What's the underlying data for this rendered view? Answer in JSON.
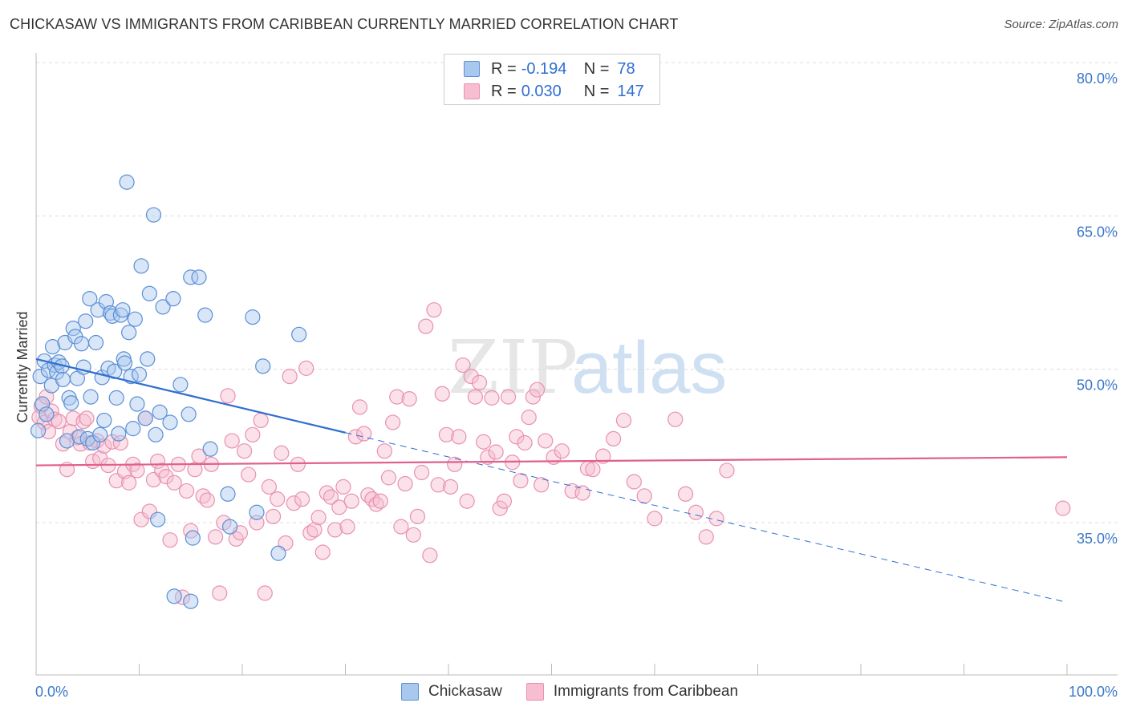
{
  "header": {
    "title": "CHICKASAW VS IMMIGRANTS FROM CARIBBEAN CURRENTLY MARRIED CORRELATION CHART",
    "source": "Source: ZipAtlas.com"
  },
  "watermark": {
    "zip": "ZIP",
    "atlas": "atlas"
  },
  "legend_top": {
    "rows": [
      {
        "r_label": "R =",
        "r_value": "-0.194",
        "n_label": "N =",
        "n_value": "78",
        "color": "#a9c8ee",
        "border": "#5b8fd6"
      },
      {
        "r_label": "R =",
        "r_value": "0.030",
        "n_label": "N =",
        "n_value": "147",
        "color": "#f7bdd0",
        "border": "#e891b0"
      }
    ]
  },
  "legend_bottom": {
    "items": [
      {
        "label": "Chickasaw",
        "color": "#a9c8ee",
        "border": "#5b8fd6"
      },
      {
        "label": "Immigrants from Caribbean",
        "color": "#f7bdd0",
        "border": "#e891b0"
      }
    ]
  },
  "chart_data": {
    "type": "scatter",
    "title": "CHICKASAW VS IMMIGRANTS FROM CARIBBEAN CURRENTLY MARRIED CORRELATION CHART",
    "ylabel": "Currently Married",
    "xlabel": "",
    "xlim": [
      0,
      100
    ],
    "ylim": [
      21,
      82
    ],
    "x_tick_labels": {
      "left": "0.0%",
      "right": "100.0%"
    },
    "y_ticks": [
      {
        "value": 80,
        "label": "80.0%"
      },
      {
        "value": 65,
        "label": "65.0%"
      },
      {
        "value": 50,
        "label": "50.0%"
      },
      {
        "value": 35,
        "label": "35.0%"
      }
    ],
    "grid": "horizontal dashed",
    "legend_placement": "top-center and bottom",
    "series": [
      {
        "name": "Chickasaw",
        "color": "#a9c8ee",
        "edge": "#5b8fd6",
        "trend": {
          "x0": 0,
          "y0": 51.0,
          "x1": 30,
          "y1": 43.8,
          "dashed_to_x": 100,
          "dashed_to_y": 27.2,
          "color": "#2f6fd0"
        },
        "points": [
          [
            0.2,
            44.0
          ],
          [
            0.4,
            49.3
          ],
          [
            0.6,
            46.6
          ],
          [
            0.8,
            50.8
          ],
          [
            1.0,
            45.6
          ],
          [
            1.2,
            49.9
          ],
          [
            1.5,
            48.4
          ],
          [
            1.6,
            52.2
          ],
          [
            1.8,
            50.4
          ],
          [
            2.0,
            49.7
          ],
          [
            2.2,
            50.7
          ],
          [
            2.5,
            50.3
          ],
          [
            2.6,
            49.0
          ],
          [
            2.8,
            52.6
          ],
          [
            3.0,
            43.0
          ],
          [
            3.2,
            47.2
          ],
          [
            3.4,
            46.7
          ],
          [
            3.6,
            54.0
          ],
          [
            3.8,
            53.2
          ],
          [
            4.0,
            49.1
          ],
          [
            4.2,
            43.4
          ],
          [
            4.4,
            52.5
          ],
          [
            4.6,
            50.2
          ],
          [
            4.8,
            54.7
          ],
          [
            5.0,
            43.2
          ],
          [
            5.2,
            56.9
          ],
          [
            5.3,
            47.3
          ],
          [
            5.5,
            42.8
          ],
          [
            5.8,
            52.6
          ],
          [
            6.0,
            55.8
          ],
          [
            6.2,
            43.6
          ],
          [
            6.4,
            49.2
          ],
          [
            6.6,
            45.0
          ],
          [
            6.8,
            56.6
          ],
          [
            7.0,
            50.1
          ],
          [
            7.2,
            55.5
          ],
          [
            7.4,
            55.2
          ],
          [
            7.6,
            49.8
          ],
          [
            7.8,
            47.2
          ],
          [
            8.0,
            43.7
          ],
          [
            8.2,
            55.3
          ],
          [
            8.4,
            55.8
          ],
          [
            8.5,
            51.0
          ],
          [
            8.6,
            50.6
          ],
          [
            8.8,
            68.3
          ],
          [
            9.0,
            53.6
          ],
          [
            9.2,
            49.3
          ],
          [
            9.4,
            44.2
          ],
          [
            9.6,
            54.9
          ],
          [
            9.8,
            46.6
          ],
          [
            10.0,
            49.5
          ],
          [
            10.2,
            60.1
          ],
          [
            10.6,
            45.2
          ],
          [
            10.8,
            51.0
          ],
          [
            11.0,
            57.4
          ],
          [
            11.4,
            65.1
          ],
          [
            11.6,
            43.6
          ],
          [
            11.8,
            35.3
          ],
          [
            12.0,
            45.8
          ],
          [
            12.3,
            56.1
          ],
          [
            13.0,
            44.8
          ],
          [
            13.3,
            56.9
          ],
          [
            14.0,
            48.5
          ],
          [
            15.0,
            59.0
          ],
          [
            15.2,
            33.5
          ],
          [
            15.8,
            59.0
          ],
          [
            16.4,
            55.3
          ],
          [
            16.9,
            42.2
          ],
          [
            18.8,
            34.6
          ],
          [
            18.6,
            37.8
          ],
          [
            21.0,
            55.1
          ],
          [
            21.4,
            36.0
          ],
          [
            22.0,
            50.3
          ],
          [
            23.5,
            32.0
          ],
          [
            25.5,
            53.4
          ],
          [
            13.4,
            27.8
          ],
          [
            15.0,
            27.3
          ],
          [
            14.8,
            45.6
          ]
        ]
      },
      {
        "name": "Immigrants from Caribbean",
        "color": "#f7bdd0",
        "edge": "#e891b0",
        "trend": {
          "x0": 0,
          "y0": 40.6,
          "x1": 100,
          "y1": 41.4,
          "color": "#e0608e"
        },
        "points": [
          [
            0.3,
            45.3
          ],
          [
            0.5,
            46.4
          ],
          [
            0.8,
            44.8
          ],
          [
            1.0,
            47.3
          ],
          [
            1.2,
            43.9
          ],
          [
            1.5,
            45.9
          ],
          [
            1.8,
            45.1
          ],
          [
            2.2,
            44.9
          ],
          [
            2.6,
            42.7
          ],
          [
            3.0,
            40.2
          ],
          [
            3.3,
            43.9
          ],
          [
            3.6,
            45.2
          ],
          [
            4.0,
            43.3
          ],
          [
            4.3,
            42.7
          ],
          [
            4.6,
            44.9
          ],
          [
            4.9,
            45.2
          ],
          [
            5.2,
            42.8
          ],
          [
            5.5,
            41.0
          ],
          [
            5.9,
            43.0
          ],
          [
            6.2,
            41.3
          ],
          [
            6.6,
            42.5
          ],
          [
            7.0,
            40.6
          ],
          [
            7.4,
            42.9
          ],
          [
            7.8,
            39.1
          ],
          [
            8.2,
            42.8
          ],
          [
            8.6,
            40.0
          ],
          [
            9.0,
            38.9
          ],
          [
            9.4,
            40.7
          ],
          [
            9.8,
            40.1
          ],
          [
            10.2,
            35.3
          ],
          [
            10.6,
            45.2
          ],
          [
            11.0,
            36.1
          ],
          [
            11.4,
            39.2
          ],
          [
            11.8,
            41.0
          ],
          [
            12.2,
            40.1
          ],
          [
            12.6,
            39.5
          ],
          [
            13.0,
            33.3
          ],
          [
            13.4,
            38.9
          ],
          [
            13.8,
            40.7
          ],
          [
            14.2,
            27.7
          ],
          [
            14.6,
            38.1
          ],
          [
            15.0,
            34.2
          ],
          [
            15.4,
            40.2
          ],
          [
            15.8,
            41.5
          ],
          [
            16.2,
            37.6
          ],
          [
            16.6,
            37.2
          ],
          [
            17.0,
            40.7
          ],
          [
            17.4,
            33.6
          ],
          [
            17.8,
            28.1
          ],
          [
            18.2,
            35.0
          ],
          [
            18.6,
            47.4
          ],
          [
            19.0,
            43.0
          ],
          [
            19.4,
            33.4
          ],
          [
            19.8,
            34.0
          ],
          [
            20.2,
            42.0
          ],
          [
            20.6,
            39.7
          ],
          [
            21.0,
            43.6
          ],
          [
            21.4,
            35.0
          ],
          [
            21.8,
            45.0
          ],
          [
            22.2,
            28.1
          ],
          [
            22.6,
            38.5
          ],
          [
            23.0,
            35.6
          ],
          [
            23.4,
            37.3
          ],
          [
            23.8,
            41.8
          ],
          [
            24.2,
            33.0
          ],
          [
            24.6,
            49.3
          ],
          [
            25.0,
            36.9
          ],
          [
            25.4,
            40.7
          ],
          [
            25.8,
            37.3
          ],
          [
            26.2,
            50.1
          ],
          [
            26.6,
            34.0
          ],
          [
            27.0,
            34.3
          ],
          [
            27.4,
            35.5
          ],
          [
            27.8,
            32.1
          ],
          [
            28.2,
            37.9
          ],
          [
            28.6,
            37.5
          ],
          [
            29.0,
            34.3
          ],
          [
            29.4,
            36.5
          ],
          [
            29.8,
            38.5
          ],
          [
            30.2,
            34.6
          ],
          [
            30.6,
            37.1
          ],
          [
            31.0,
            43.4
          ],
          [
            31.4,
            46.3
          ],
          [
            31.8,
            43.7
          ],
          [
            32.2,
            37.7
          ],
          [
            32.6,
            37.3
          ],
          [
            33.0,
            36.8
          ],
          [
            33.4,
            37.1
          ],
          [
            33.8,
            42.0
          ],
          [
            34.2,
            39.4
          ],
          [
            34.6,
            44.8
          ],
          [
            35.0,
            47.3
          ],
          [
            35.4,
            34.6
          ],
          [
            35.8,
            38.8
          ],
          [
            36.2,
            47.1
          ],
          [
            36.6,
            33.8
          ],
          [
            37.0,
            35.6
          ],
          [
            37.4,
            39.9
          ],
          [
            37.8,
            54.2
          ],
          [
            38.2,
            31.8
          ],
          [
            38.6,
            55.8
          ],
          [
            39.0,
            38.7
          ],
          [
            39.4,
            47.6
          ],
          [
            39.8,
            43.6
          ],
          [
            40.2,
            38.5
          ],
          [
            40.6,
            40.7
          ],
          [
            41.0,
            43.4
          ],
          [
            41.4,
            50.4
          ],
          [
            41.8,
            37.1
          ],
          [
            42.2,
            49.3
          ],
          [
            42.6,
            47.3
          ],
          [
            43.0,
            48.7
          ],
          [
            43.4,
            42.9
          ],
          [
            43.8,
            41.4
          ],
          [
            44.2,
            47.2
          ],
          [
            44.6,
            41.9
          ],
          [
            45.0,
            36.4
          ],
          [
            45.4,
            37.1
          ],
          [
            45.8,
            47.3
          ],
          [
            46.2,
            40.9
          ],
          [
            46.6,
            43.4
          ],
          [
            47.0,
            39.1
          ],
          [
            47.4,
            42.8
          ],
          [
            47.8,
            45.3
          ],
          [
            48.2,
            47.3
          ],
          [
            48.6,
            48.0
          ],
          [
            49.0,
            38.7
          ],
          [
            49.4,
            43.0
          ],
          [
            50.2,
            41.4
          ],
          [
            51.0,
            42.0
          ],
          [
            52.0,
            38.1
          ],
          [
            53.0,
            37.9
          ],
          [
            53.5,
            40.3
          ],
          [
            54.0,
            40.2
          ],
          [
            55.0,
            41.5
          ],
          [
            56.0,
            43.2
          ],
          [
            57.0,
            45.0
          ],
          [
            58.0,
            39.0
          ],
          [
            59.0,
            37.6
          ],
          [
            60.0,
            35.4
          ],
          [
            62.0,
            45.1
          ],
          [
            63.0,
            37.8
          ],
          [
            64.0,
            36.0
          ],
          [
            65.0,
            33.6
          ],
          [
            66.0,
            35.4
          ],
          [
            67.0,
            40.1
          ],
          [
            99.6,
            36.4
          ]
        ]
      }
    ]
  }
}
